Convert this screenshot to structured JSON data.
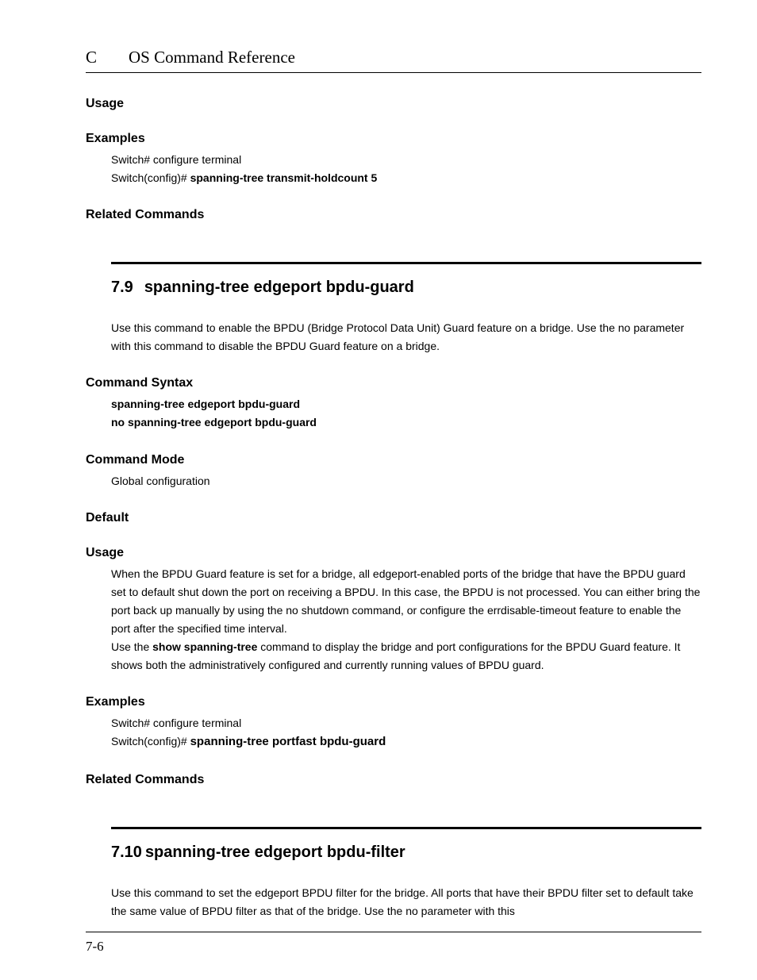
{
  "header": {
    "chapter_letter": "C",
    "title": "OS Command Reference"
  },
  "top": {
    "usage_heading": "Usage",
    "examples_heading": "Examples",
    "example_line1": "Switch# configure terminal",
    "example_line2_prefix": "Switch(config)# ",
    "example_line2_bold": "spanning-tree transmit-holdcount 5",
    "related_heading": "Related Commands"
  },
  "sec79": {
    "number": "7.9",
    "title": "spanning-tree edgeport bpdu-guard",
    "intro": "Use this command to enable the BPDU (Bridge Protocol Data Unit) Guard feature on a bridge. Use the no parameter with this command to disable the BPDU Guard feature on a bridge.",
    "syntax_heading": "Command Syntax",
    "syntax_line1": "spanning-tree edgeport bpdu-guard",
    "syntax_line2": "no spanning-tree edgeport bpdu-guard",
    "mode_heading": "Command Mode",
    "mode_value": "Global configuration",
    "default_heading": "Default",
    "usage_heading": "Usage",
    "usage_p1": "When the BPDU Guard feature is set for a bridge, all edgeport-enabled ports of the bridge that have the BPDU guard set to default shut down the port on receiving a BPDU. In this case, the BPDU is not processed. You can either bring the port back up manually by using the no shutdown command, or configure the errdisable-timeout feature to enable the port after the specified time interval.",
    "usage_p2_pre": "Use the ",
    "usage_p2_bold": "show spanning-tree",
    "usage_p2_post": " command to display the bridge and port configurations for the BPDU Guard feature. It shows both the administratively configured and currently running values of BPDU guard.",
    "examples_heading": "Examples",
    "example_line1": "Switch# configure terminal",
    "example_line2_prefix": "Switch(config)# ",
    "example_line2_bold": "spanning-tree portfast bpdu-guard",
    "related_heading": "Related Commands"
  },
  "sec710": {
    "number": "7.10",
    "title": "spanning-tree edgeport bpdu-filter",
    "intro": "Use this command to set the edgeport BPDU filter for the bridge. All ports that have their BPDU filter set to default take the same value of BPDU filter as that of the bridge. Use the no parameter with this"
  },
  "footer": {
    "page_number": "7-6"
  }
}
